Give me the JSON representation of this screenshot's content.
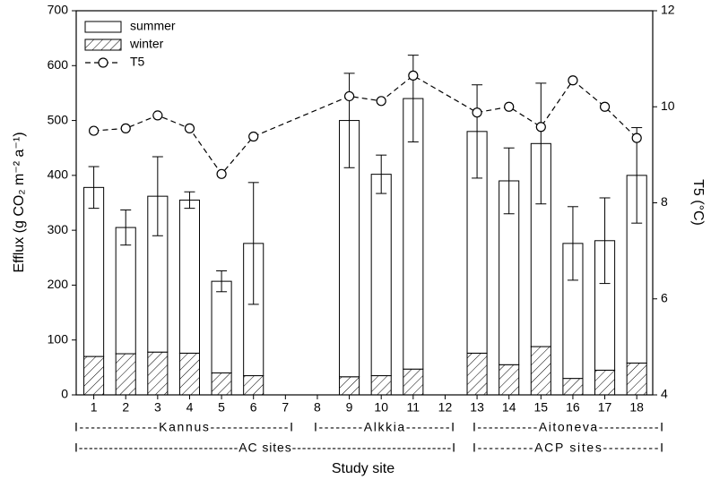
{
  "chart_data": {
    "type": "bar",
    "x_label": "Study site",
    "y_label": "Efflux (g CO₂ m⁻² a⁻¹)",
    "y2_label": "T5 (°C)",
    "x": [
      1,
      2,
      3,
      4,
      5,
      6,
      7,
      8,
      9,
      10,
      11,
      12,
      13,
      14,
      15,
      16,
      17,
      18
    ],
    "xlim": [
      0.45,
      18.5
    ],
    "xticks": [
      1,
      2,
      3,
      4,
      5,
      6,
      7,
      8,
      9,
      10,
      11,
      12,
      13,
      14,
      15,
      16,
      17,
      18
    ],
    "ylim": [
      0,
      700
    ],
    "yticks": [
      0,
      100,
      200,
      300,
      400,
      500,
      600,
      700
    ],
    "y2lim": [
      4,
      12
    ],
    "y2ticks": [
      4,
      6,
      8,
      10,
      12
    ],
    "stacked": true,
    "legend": "upper left",
    "series": [
      {
        "name": "summer",
        "color": "#ffffff",
        "values": [
          308,
          230,
          284,
          279,
          167,
          241,
          null,
          null,
          467,
          367,
          493,
          null,
          404,
          335,
          370,
          246,
          236,
          342
        ],
        "errors": [
          38,
          32,
          72,
          15,
          19,
          111,
          null,
          null,
          86,
          35,
          79,
          null,
          85,
          60,
          110,
          67,
          78,
          87
        ]
      },
      {
        "name": "winter",
        "color": "#ffffff",
        "hatch": true,
        "values": [
          70,
          75,
          78,
          76,
          40,
          35,
          null,
          null,
          33,
          35,
          47,
          null,
          76,
          55,
          88,
          30,
          45,
          58
        ]
      },
      {
        "name": "T5",
        "type": "line",
        "axis": "y2",
        "dashed": true,
        "marker": "circle",
        "color": "#000000",
        "x": [
          1,
          2,
          3,
          4,
          5,
          6,
          9,
          10,
          11,
          13,
          14,
          15,
          16,
          17,
          18
        ],
        "values": [
          9.5,
          9.55,
          9.82,
          9.55,
          8.6,
          9.38,
          10.22,
          10.12,
          10.65,
          9.88,
          10.0,
          9.58,
          10.55,
          10.0,
          9.35
        ]
      }
    ],
    "group_labels": [
      [
        "I--------------Kannus--------------I",
        "I--------Alkkia--------I",
        "I-----------Aitoneva-----------I"
      ],
      [
        "I--------------------------------AC sites--------------------------------I",
        "I----------ACP sites----------I"
      ]
    ]
  }
}
